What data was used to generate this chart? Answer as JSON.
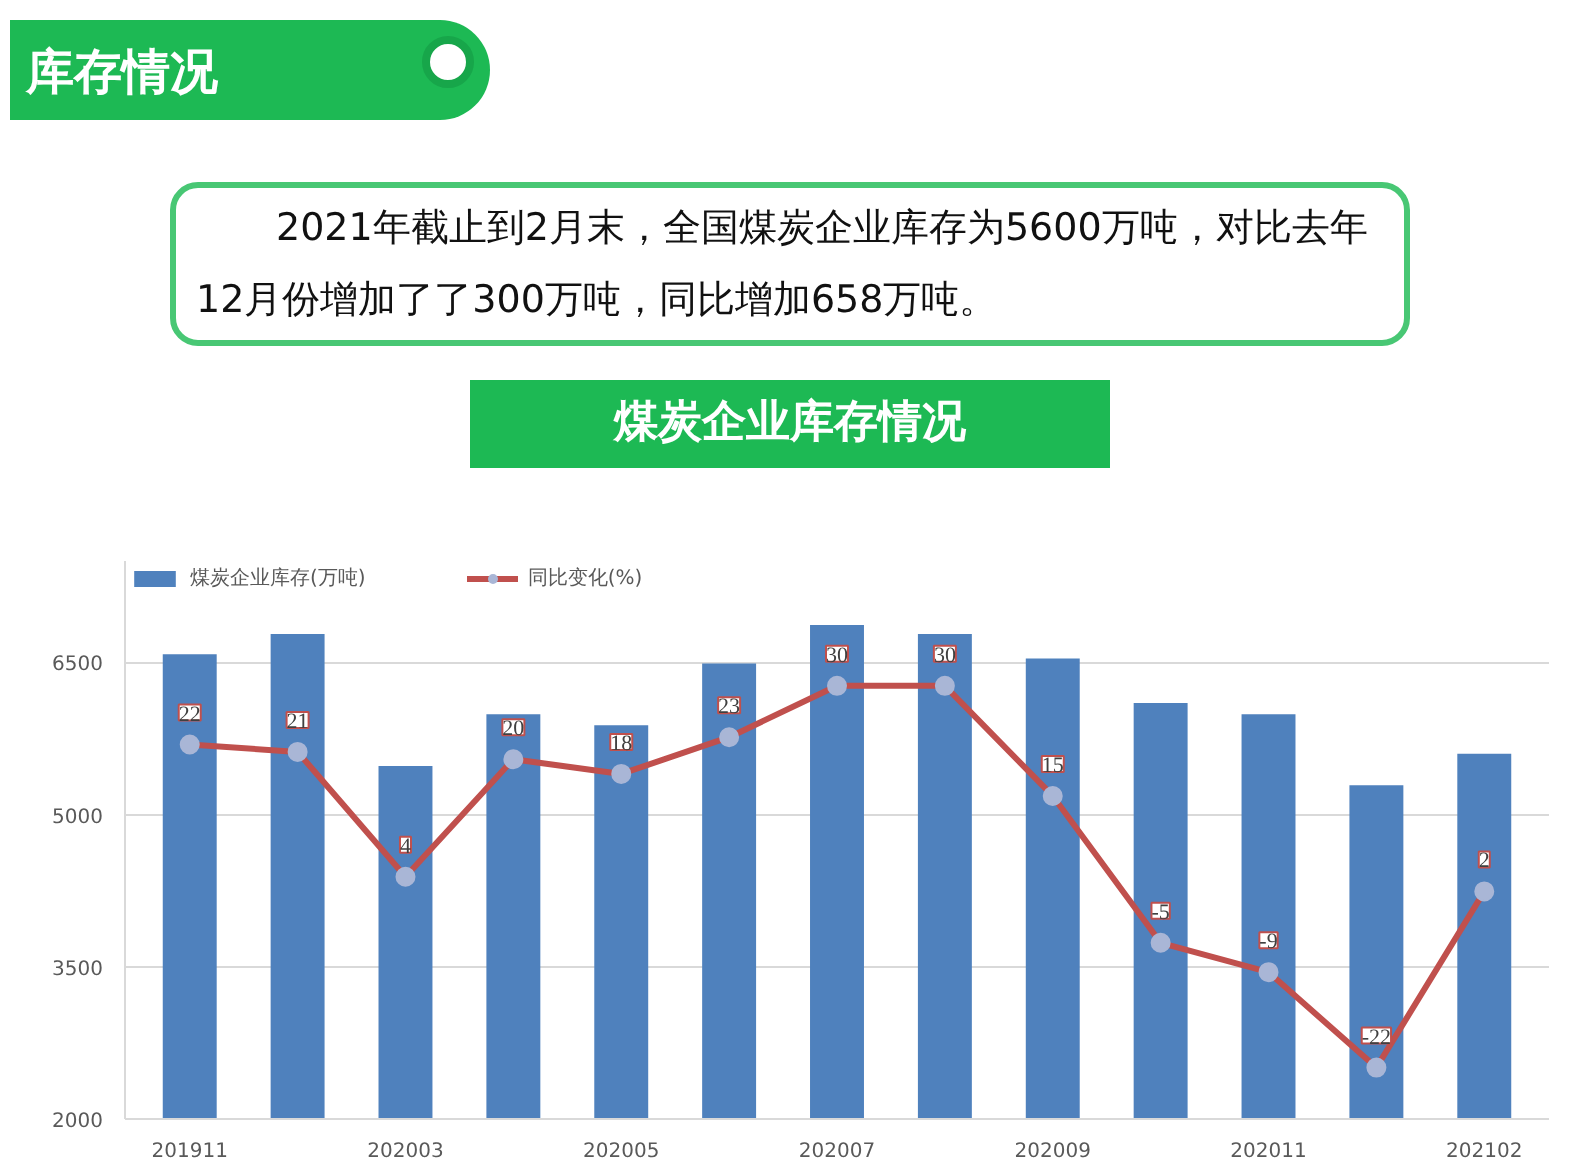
{
  "chart_data": {
    "type": "bar",
    "title": "煤炭企业库存情况",
    "subtitle": "2021年截止到2月末，全国煤炭企业库存为5600万吨，对比去年12月份增加了了300万吨，同比增加658万吨。",
    "annotations": [
      "库存情况"
    ],
    "categories": [
      "201911",
      null,
      "202003",
      null,
      "202005",
      null,
      "202007",
      null,
      "202009",
      null,
      "202011",
      null,
      "202102"
    ],
    "series": [
      {
        "name": "煤炭企业库存(万吨)",
        "color": "#4f81bd",
        "values": [
          6580,
          6780,
          5480,
          5990,
          5880,
          6490,
          6870,
          6780,
          6540,
          6100,
          5990,
          5290,
          5600
        ]
      },
      {
        "name": "同比变化(%)",
        "type": "line",
        "axis": "y2",
        "color": "#c0504d",
        "marker": "circle",
        "data_labels": true,
        "values": [
          22,
          21,
          4,
          20,
          18,
          23,
          30,
          30,
          15,
          -5,
          -9,
          -22,
          2
        ]
      }
    ],
    "ylim": [
      2000,
      7500
    ],
    "yticks": [
      2000,
      3500,
      5000,
      6500
    ],
    "y2lim": [
      -29,
      47
    ],
    "grid": "y",
    "legend": "top left"
  }
}
